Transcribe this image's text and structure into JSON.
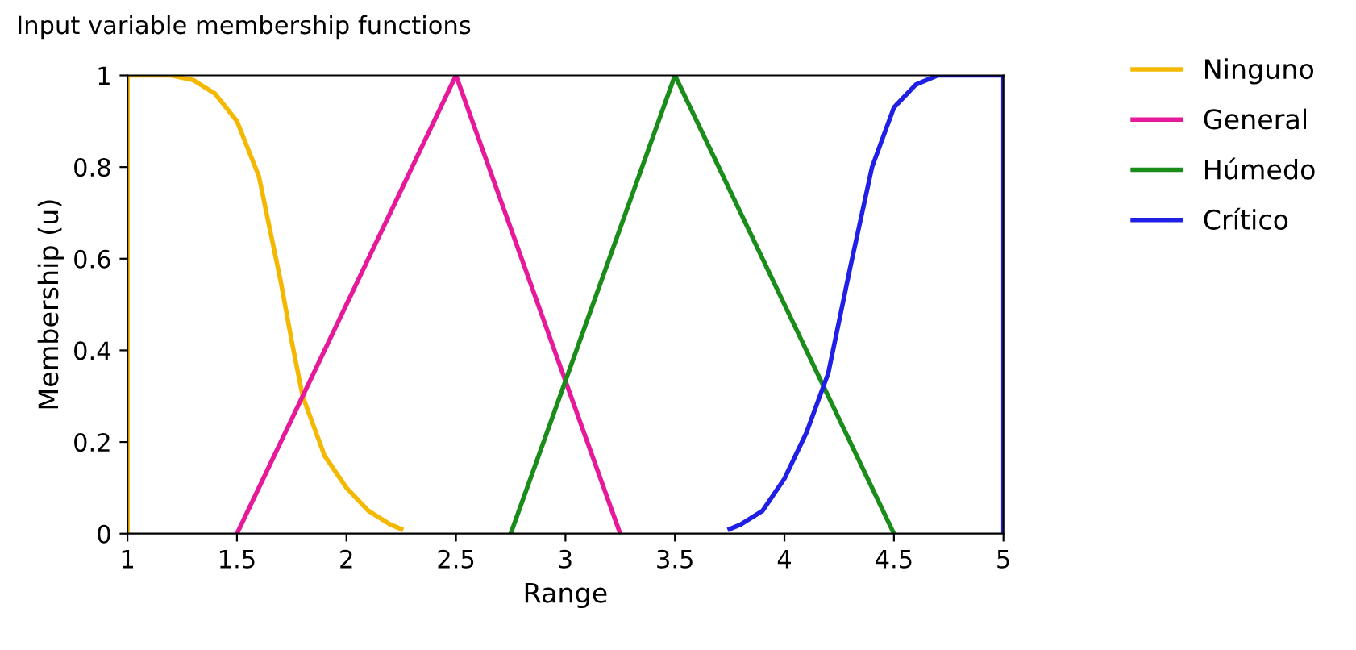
{
  "chart_data": {
    "type": "line",
    "title": "Input variable membership functions",
    "xlabel": "Range",
    "ylabel": "Membership (u)",
    "xlim": [
      1,
      5
    ],
    "ylim": [
      0,
      1
    ],
    "xticks": [
      1,
      1.5,
      2,
      2.5,
      3,
      3.5,
      4,
      4.5,
      5
    ],
    "yticks": [
      0,
      0.2,
      0.4,
      0.6,
      0.8,
      1
    ],
    "grid": false,
    "legend": "top right",
    "marker": "none",
    "line_style": "solid",
    "series": [
      {
        "name": "Ninguno",
        "color": "#f5b800",
        "x": [
          1,
          1,
          1.2,
          1.3,
          1.4,
          1.5,
          1.6,
          1.7,
          1.75,
          1.8,
          1.9,
          2,
          2.1,
          2.2,
          2.25
        ],
        "values": [
          0,
          1,
          1,
          0.99,
          0.96,
          0.9,
          0.78,
          0.55,
          0.42,
          0.3,
          0.17,
          0.1,
          0.05,
          0.02,
          0.01
        ]
      },
      {
        "name": "General",
        "color": "#e6199b",
        "x": [
          1.5,
          2.5,
          3.25
        ],
        "values": [
          0,
          1,
          0
        ]
      },
      {
        "name": "Húmedo",
        "color": "#1a8c1a",
        "x": [
          2.75,
          3.5,
          4.5
        ],
        "values": [
          0,
          1,
          0
        ]
      },
      {
        "name": "Crítico",
        "color": "#1f1fe6",
        "x": [
          3.75,
          3.8,
          3.9,
          4,
          4.1,
          4.2,
          4.3,
          4.4,
          4.5,
          4.6,
          4.7,
          5,
          5
        ],
        "values": [
          0.01,
          0.02,
          0.05,
          0.12,
          0.22,
          0.35,
          0.58,
          0.8,
          0.93,
          0.98,
          1,
          1,
          0
        ]
      }
    ]
  }
}
